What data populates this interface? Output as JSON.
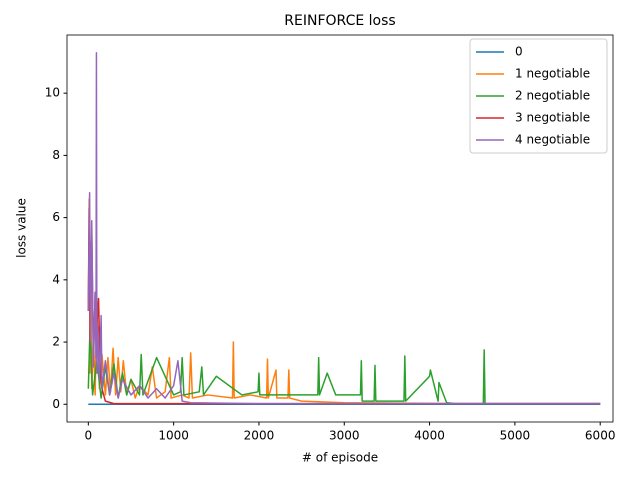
{
  "chart_data": {
    "type": "line",
    "title": "REINFORCE loss",
    "xlabel": "# of episode",
    "ylabel": "loss value",
    "xlim": [
      -250,
      6150
    ],
    "ylim": [
      -0.57,
      11.87
    ],
    "xticks": [
      0,
      1000,
      2000,
      3000,
      4000,
      5000,
      6000
    ],
    "yticks": [
      0,
      2,
      4,
      6,
      8,
      10
    ],
    "legend": "upper right",
    "series": [
      {
        "name": "0",
        "color": "#1f77b4",
        "x": [
          0,
          20,
          6000
        ],
        "values": [
          0,
          0,
          0
        ]
      },
      {
        "name": "1 negotiable",
        "color": "#ff7f0e",
        "x": [
          0,
          10,
          20,
          30,
          40,
          60,
          80,
          100,
          130,
          160,
          200,
          230,
          260,
          290,
          320,
          350,
          380,
          410,
          450,
          500,
          550,
          600,
          700,
          750,
          800,
          900,
          950,
          970,
          1100,
          1180,
          1200,
          1220,
          1400,
          1690,
          1700,
          1710,
          1900,
          2090,
          2100,
          2110,
          2200,
          2210,
          2340,
          2350,
          2360,
          2500,
          3000,
          4300,
          6000
        ],
        "values": [
          3.0,
          6.6,
          1.0,
          5.2,
          0.5,
          2.2,
          0.3,
          3.4,
          0.5,
          1.6,
          0.3,
          1.5,
          0.4,
          1.8,
          0.3,
          1.5,
          0.4,
          1.4,
          0.3,
          0.8,
          0.2,
          0.6,
          0.3,
          1.2,
          0.2,
          0.4,
          1.5,
          0.2,
          0.3,
          0.2,
          1.65,
          0.2,
          0.3,
          0.2,
          2.0,
          0.2,
          0.3,
          0.2,
          1.45,
          0.2,
          1.1,
          0.2,
          0.2,
          1.1,
          0.2,
          0.1,
          0.05,
          0.02,
          0.02
        ]
      },
      {
        "name": "2 negotiable",
        "color": "#2ca02c",
        "x": [
          0,
          20,
          50,
          100,
          150,
          200,
          250,
          300,
          350,
          400,
          450,
          500,
          600,
          620,
          640,
          800,
          1000,
          1080,
          1100,
          1120,
          1300,
          1330,
          1350,
          1500,
          1800,
          1990,
          2000,
          2010,
          2400,
          2690,
          2700,
          2710,
          2800,
          2900,
          3190,
          3200,
          3210,
          3350,
          3360,
          3370,
          3700,
          3710,
          3720,
          4000,
          4010,
          4100,
          4110,
          4200,
          4300,
          4630,
          4640,
          4650,
          5000,
          6000
        ],
        "values": [
          0.5,
          2.5,
          0.3,
          1.4,
          0.2,
          1.2,
          0.3,
          1.3,
          0.2,
          1.0,
          0.3,
          0.8,
          0.3,
          1.6,
          0.3,
          1.5,
          0.3,
          0.4,
          1.5,
          0.3,
          0.4,
          1.2,
          0.3,
          0.9,
          0.3,
          0.4,
          1.0,
          0.3,
          0.3,
          0.3,
          1.5,
          0.3,
          1.0,
          0.3,
          0.3,
          1.4,
          0.1,
          0.1,
          1.25,
          0.1,
          0.1,
          1.55,
          0.1,
          0.9,
          1.1,
          0.1,
          0.7,
          0.05,
          0.02,
          0.02,
          1.75,
          0.02,
          0.02,
          0.02
        ]
      },
      {
        "name": "3 negotiable",
        "color": "#d62728",
        "x": [
          0,
          10,
          20,
          40,
          60,
          80,
          100,
          120,
          140,
          160,
          200,
          300,
          6000
        ],
        "values": [
          3.0,
          6.3,
          2.0,
          5.5,
          1.5,
          3.6,
          2.5,
          3.4,
          1.0,
          0.5,
          0.1,
          0.02,
          0.02
        ]
      },
      {
        "name": "4 negotiable",
        "color": "#9467bd",
        "x": [
          0,
          15,
          25,
          40,
          60,
          80,
          90,
          95,
          100,
          110,
          130,
          150,
          160,
          200,
          250,
          300,
          350,
          400,
          500,
          600,
          700,
          800,
          900,
          1000,
          1050,
          1100,
          1200,
          2000,
          6000
        ],
        "values": [
          3.0,
          6.8,
          2.0,
          5.9,
          1.2,
          3.6,
          1.5,
          11.3,
          1.0,
          2.5,
          0.8,
          2.85,
          0.5,
          1.4,
          0.3,
          1.0,
          0.2,
          0.8,
          0.3,
          0.6,
          0.2,
          0.5,
          0.2,
          0.6,
          1.4,
          0.1,
          0.05,
          0.02,
          0.02
        ]
      }
    ]
  }
}
